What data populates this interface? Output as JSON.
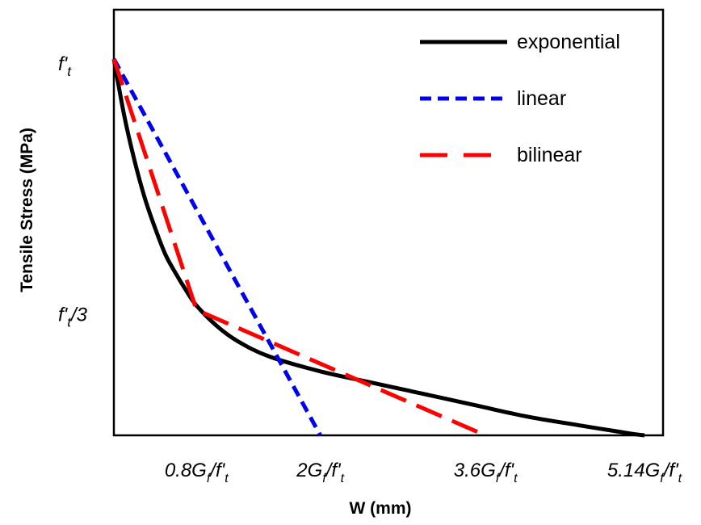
{
  "chart_data": {
    "type": "line",
    "title": "",
    "xlabel": "W (mm)",
    "ylabel": "Tensile Stress (MPa)",
    "x_unit_label": "G_f/f'_t",
    "y_unit_label": "f'_t",
    "xlim": [
      0,
      5.14
    ],
    "ylim": [
      0,
      1
    ],
    "grid": false,
    "legend_position": "top-right",
    "x_ticks": [
      {
        "value": 0.8,
        "coef": "0.8"
      },
      {
        "value": 2.0,
        "coef": "2"
      },
      {
        "value": 3.6,
        "coef": "3.6"
      },
      {
        "value": 5.14,
        "coef": "5.14"
      }
    ],
    "y_ticks": [
      {
        "value": 1.0,
        "main": "f",
        "sub": "t",
        "suffix": ""
      },
      {
        "value": 0.3333,
        "main": "f",
        "sub": "t",
        "suffix": "/3"
      }
    ],
    "series": [
      {
        "name": "exponential",
        "style": "solid",
        "color": "#000000",
        "x": [
          0,
          0.1,
          0.2,
          0.3,
          0.4,
          0.5,
          0.6,
          0.7,
          0.8,
          1.0,
          1.2,
          1.5,
          2.0,
          2.5,
          3.0,
          3.5,
          4.0,
          4.5,
          5.0,
          5.14
        ],
        "y": [
          1.0,
          0.85,
          0.73,
          0.63,
          0.55,
          0.48,
          0.43,
          0.385,
          0.345,
          0.29,
          0.25,
          0.21,
          0.17,
          0.14,
          0.11,
          0.08,
          0.05,
          0.027,
          0.005,
          0.0
        ]
      },
      {
        "name": "linear",
        "style": "short-dash",
        "color": "#0000ee",
        "x": [
          0,
          2.0
        ],
        "y": [
          1.0,
          0.0
        ]
      },
      {
        "name": "bilinear",
        "style": "long-dash",
        "color": "#ff0000",
        "x": [
          0,
          0.8,
          3.6
        ],
        "y": [
          1.0,
          0.3333,
          0.0
        ]
      }
    ]
  }
}
